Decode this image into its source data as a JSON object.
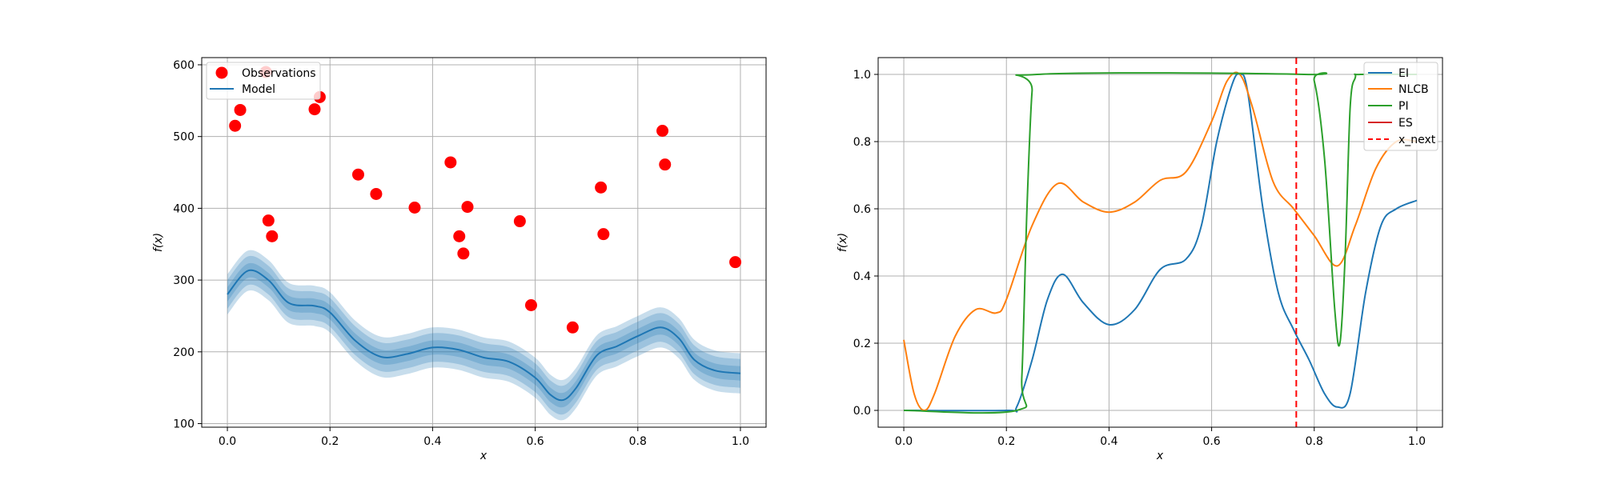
{
  "chart_data": [
    {
      "type": "line",
      "xlabel": "x",
      "ylabel": "f(x)",
      "xlim": [
        -0.05,
        1.05
      ],
      "ylim": [
        95,
        610
      ],
      "xticks": [
        "0.0",
        "0.2",
        "0.4",
        "0.6",
        "0.8",
        "1.0"
      ],
      "yticks": [
        "100",
        "200",
        "300",
        "400",
        "500",
        "600"
      ],
      "grid": true,
      "legend_position": "top-left",
      "legend": [
        "Observations",
        "Model"
      ],
      "observations": {
        "name": "Observations",
        "color": "#ff0000",
        "x": [
          0.015,
          0.025,
          0.075,
          0.08,
          0.087,
          0.17,
          0.18,
          0.255,
          0.29,
          0.365,
          0.435,
          0.452,
          0.46,
          0.468,
          0.57,
          0.592,
          0.673,
          0.728,
          0.733,
          0.848,
          0.853,
          0.99
        ],
        "y": [
          515,
          537,
          590,
          383,
          361,
          538,
          555,
          447,
          420,
          401,
          464,
          361,
          337,
          402,
          382,
          265,
          234,
          429,
          364,
          508,
          461,
          325
        ]
      },
      "model": {
        "name": "Model",
        "color": "#1f77b4",
        "x": [
          0.0,
          0.04,
          0.08,
          0.12,
          0.17,
          0.2,
          0.25,
          0.3,
          0.35,
          0.4,
          0.45,
          0.5,
          0.55,
          0.6,
          0.63,
          0.655,
          0.68,
          0.72,
          0.76,
          0.8,
          0.845,
          0.88,
          0.91,
          0.95,
          1.0
        ],
        "mean": [
          280,
          313,
          300,
          268,
          264,
          255,
          215,
          193,
          197,
          206,
          203,
          192,
          186,
          164,
          140,
          133,
          150,
          195,
          208,
          222,
          234,
          219,
          189,
          174,
          170
        ],
        "bands": [
          10,
          20,
          28
        ]
      }
    },
    {
      "type": "line",
      "xlabel": "x",
      "ylabel": "f(x)",
      "xlim": [
        -0.05,
        1.05
      ],
      "ylim": [
        -0.05,
        1.05
      ],
      "xticks": [
        "0.0",
        "0.2",
        "0.4",
        "0.6",
        "0.8",
        "1.0"
      ],
      "yticks": [
        "0.0",
        "0.2",
        "0.4",
        "0.6",
        "0.8",
        "1.0"
      ],
      "grid": true,
      "legend_position": "top-right",
      "legend": [
        "EI",
        "NLCB",
        "PI",
        "ES",
        "x_next"
      ],
      "series": [
        {
          "name": "EI",
          "color": "#1f77b4",
          "x": [
            0.0,
            0.2,
            0.22,
            0.25,
            0.28,
            0.31,
            0.35,
            0.4,
            0.45,
            0.5,
            0.55,
            0.58,
            0.61,
            0.64,
            0.655,
            0.67,
            0.7,
            0.73,
            0.76,
            0.79,
            0.82,
            0.845,
            0.87,
            0.9,
            0.93,
            0.96,
            1.0
          ],
          "y": [
            0.0,
            0.0,
            0.01,
            0.15,
            0.33,
            0.405,
            0.32,
            0.255,
            0.3,
            0.42,
            0.45,
            0.55,
            0.8,
            0.97,
            1.0,
            0.95,
            0.6,
            0.35,
            0.24,
            0.15,
            0.05,
            0.01,
            0.05,
            0.35,
            0.55,
            0.6,
            0.625
          ]
        },
        {
          "name": "NLCB",
          "color": "#ff7f0e",
          "x": [
            0.0,
            0.02,
            0.04,
            0.06,
            0.1,
            0.14,
            0.18,
            0.2,
            0.25,
            0.3,
            0.35,
            0.4,
            0.45,
            0.5,
            0.55,
            0.6,
            0.63,
            0.655,
            0.68,
            0.72,
            0.76,
            0.8,
            0.845,
            0.88,
            0.92,
            0.96,
            1.0
          ],
          "y": [
            0.21,
            0.05,
            0.0,
            0.05,
            0.22,
            0.3,
            0.29,
            0.33,
            0.55,
            0.675,
            0.62,
            0.59,
            0.62,
            0.685,
            0.71,
            0.86,
            0.98,
            1.0,
            0.9,
            0.68,
            0.6,
            0.52,
            0.43,
            0.55,
            0.72,
            0.8,
            0.8
          ]
        },
        {
          "name": "PI",
          "color": "#2ca02c",
          "x": [
            0.0,
            0.22,
            0.23,
            0.24,
            0.25,
            0.26,
            0.78,
            0.8,
            0.82,
            0.84,
            0.85,
            0.86,
            0.87,
            0.88,
            0.89,
            1.0
          ],
          "y": [
            0.0,
            0.0,
            0.1,
            0.6,
            0.95,
            1.0,
            1.0,
            0.98,
            0.75,
            0.3,
            0.2,
            0.45,
            0.9,
            0.99,
            1.0,
            1.0
          ]
        },
        {
          "name": "ES",
          "color": "#d62728",
          "x": [],
          "y": []
        }
      ],
      "x_next": {
        "name": "x_next",
        "color": "#ff0000",
        "value": 0.765
      }
    }
  ]
}
